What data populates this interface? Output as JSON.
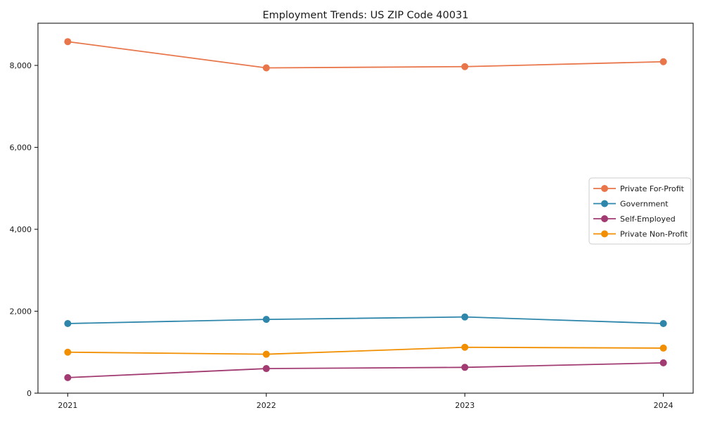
{
  "chart_data": {
    "type": "line",
    "title": "Employment Trends: US ZIP Code 40031",
    "xlabel": "",
    "ylabel": "",
    "categories": [
      2021,
      2022,
      2023,
      2024
    ],
    "x_tick_labels": [
      "2021",
      "2022",
      "2023",
      "2024"
    ],
    "series": [
      {
        "name": "Private For-Profit",
        "color": "#e8764a",
        "values": [
          8580,
          7940,
          7970,
          8090
        ]
      },
      {
        "name": "Government",
        "color": "#2e86ab",
        "values": [
          1700,
          1800,
          1860,
          1700
        ]
      },
      {
        "name": "Self-Employed",
        "color": "#a23b72",
        "values": [
          380,
          600,
          630,
          740
        ]
      },
      {
        "name": "Private Non-Profit",
        "color": "#f18f01",
        "values": [
          1000,
          950,
          1120,
          1100
        ]
      }
    ],
    "ylim": [
      0,
      9030
    ],
    "xlim": [
      2020.85,
      2024.15
    ],
    "yticks": [
      0,
      2000,
      4000,
      6000,
      8000
    ],
    "ytick_labels": [
      "0",
      "2,000",
      "4,000",
      "6,000",
      "8,000"
    ],
    "grid": false,
    "legend_position": "center right",
    "marker": "circle",
    "axis_color": "#1a1a1a",
    "legend_border_color": "#cccccc"
  }
}
